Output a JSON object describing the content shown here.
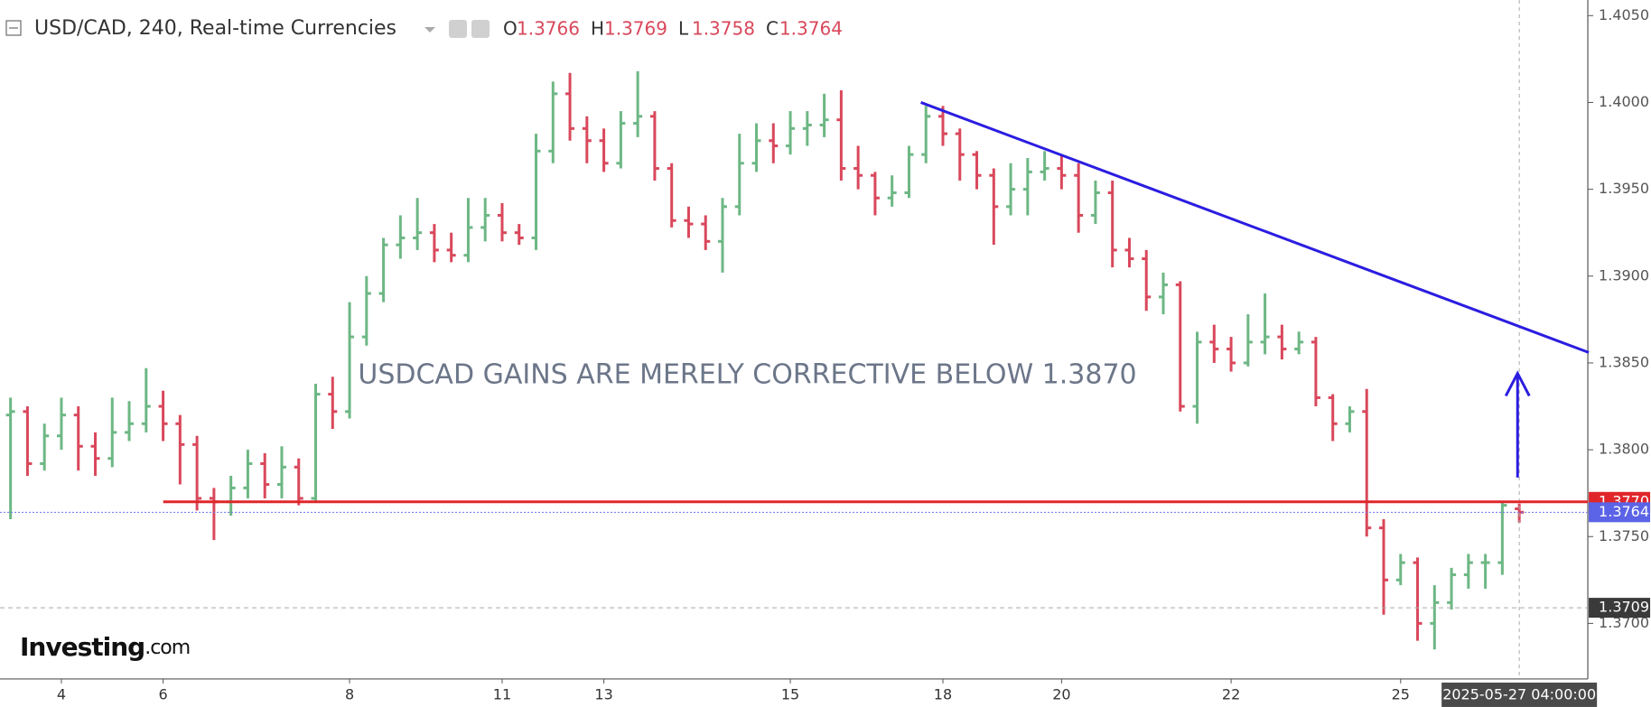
{
  "chart_data": {
    "type": "ohlc",
    "title": "USD/CAD, 240, Real-time Currencies",
    "ohlc_header": [
      {
        "label": "O",
        "value": 1.3766
      },
      {
        "label": "H",
        "value": 1.3769
      },
      {
        "label": "L",
        "value": 1.3758
      },
      {
        "label": "C",
        "value": 1.3764
      }
    ],
    "up_color": "#6db784",
    "down_color": "#d9485b",
    "categories": [
      null,
      null,
      null,
      "4",
      null,
      null,
      null,
      null,
      null,
      "6",
      null,
      null,
      null,
      null,
      null,
      null,
      null,
      null,
      null,
      null,
      "8",
      null,
      null,
      null,
      null,
      null,
      null,
      null,
      null,
      "11",
      null,
      null,
      null,
      null,
      null,
      "13",
      null,
      null,
      null,
      null,
      null,
      null,
      null,
      null,
      null,
      null,
      "15",
      null,
      null,
      null,
      null,
      null,
      null,
      null,
      null,
      "18",
      null,
      null,
      null,
      null,
      null,
      null,
      "20",
      null,
      null,
      null,
      null,
      null,
      null,
      null,
      null,
      null,
      "22",
      null,
      null,
      null,
      null,
      null,
      null,
      null,
      null,
      null,
      "25",
      null,
      null,
      null,
      null,
      null,
      null,
      "2025-05-27 04:00:00"
    ],
    "open": [
      1.382,
      1.3822,
      1.3792,
      1.3808,
      1.382,
      1.3802,
      1.3795,
      1.381,
      1.3815,
      1.3825,
      1.3815,
      1.3803,
      1.3772,
      1.377,
      1.3778,
      1.3792,
      1.378,
      1.379,
      1.3772,
      1.3832,
      1.3822,
      1.3865,
      1.389,
      1.3918,
      1.3922,
      1.3925,
      1.3915,
      1.3912,
      1.3928,
      1.3935,
      1.3925,
      1.3922,
      1.3972,
      1.4005,
      1.3985,
      1.3978,
      1.3965,
      1.3988,
      1.3992,
      1.3962,
      1.3932,
      1.393,
      1.392,
      1.394,
      1.3965,
      1.3978,
      1.3975,
      1.3985,
      1.3987,
      1.399,
      1.3962,
      1.3958,
      1.3945,
      1.3948,
      1.397,
      1.3992,
      1.3982,
      1.397,
      1.3958,
      1.394,
      1.395,
      1.396,
      1.3962,
      1.3958,
      1.3935,
      1.3948,
      1.3915,
      1.391,
      1.3888,
      1.3895,
      1.3825,
      1.3862,
      1.3858,
      1.385,
      1.3862,
      1.3865,
      1.3858,
      1.3862,
      1.383,
      1.3815,
      1.3822,
      1.3755,
      1.3725,
      1.3735,
      1.37,
      1.3712,
      1.3728,
      1.3735,
      1.3735,
      1.3766
    ],
    "high": [
      1.383,
      1.3825,
      1.3815,
      1.383,
      1.3825,
      1.381,
      1.383,
      1.3828,
      1.3847,
      1.3834,
      1.382,
      1.3808,
      1.3778,
      1.3785,
      1.38,
      1.3798,
      1.3802,
      1.3795,
      1.3838,
      1.3842,
      1.3885,
      1.39,
      1.3922,
      1.3935,
      1.3945,
      1.393,
      1.3925,
      1.3945,
      1.3945,
      1.3942,
      1.393,
      1.3982,
      1.4012,
      1.4017,
      1.3992,
      1.3985,
      1.3995,
      1.4018,
      1.3995,
      1.3965,
      1.394,
      1.3935,
      1.3945,
      1.3982,
      1.3988,
      1.3988,
      1.3995,
      1.3995,
      1.4005,
      1.4007,
      1.3975,
      1.396,
      1.3958,
      1.3975,
      1.3998,
      1.3998,
      1.3985,
      1.3972,
      1.3962,
      1.3965,
      1.3968,
      1.3972,
      1.397,
      1.3965,
      1.3955,
      1.3955,
      1.3922,
      1.3915,
      1.3902,
      1.3897,
      1.3868,
      1.3872,
      1.3865,
      1.3878,
      1.389,
      1.3872,
      1.3868,
      1.3865,
      1.3832,
      1.3825,
      1.3835,
      1.376,
      1.374,
      1.3738,
      1.3722,
      1.3732,
      1.374,
      1.374,
      1.377,
      1.3769
    ],
    "low": [
      1.376,
      1.3785,
      1.3788,
      1.38,
      1.3788,
      1.3785,
      1.379,
      1.3805,
      1.381,
      1.3805,
      1.378,
      1.3765,
      1.3748,
      1.3762,
      1.3772,
      1.3772,
      1.3772,
      1.3768,
      1.377,
      1.3812,
      1.3818,
      1.386,
      1.3885,
      1.391,
      1.3915,
      1.3908,
      1.3908,
      1.3908,
      1.392,
      1.392,
      1.3918,
      1.3915,
      1.3965,
      1.3978,
      1.3965,
      1.396,
      1.3962,
      1.398,
      1.3955,
      1.3928,
      1.3922,
      1.3915,
      1.3902,
      1.3935,
      1.396,
      1.3965,
      1.397,
      1.3975,
      1.398,
      1.3955,
      1.395,
      1.3935,
      1.394,
      1.3945,
      1.3965,
      1.3975,
      1.3955,
      1.395,
      1.3918,
      1.3935,
      1.3935,
      1.3955,
      1.395,
      1.3925,
      1.393,
      1.3905,
      1.3905,
      1.388,
      1.3878,
      1.3822,
      1.3815,
      1.385,
      1.3845,
      1.3848,
      1.3855,
      1.3852,
      1.3855,
      1.3825,
      1.3805,
      1.381,
      1.375,
      1.3705,
      1.3722,
      1.369,
      1.3685,
      1.3708,
      1.372,
      1.372,
      1.3728,
      1.3758
    ],
    "close": [
      1.3822,
      1.3792,
      1.3808,
      1.382,
      1.3802,
      1.3795,
      1.381,
      1.3815,
      1.3825,
      1.3815,
      1.3803,
      1.3772,
      1.377,
      1.3778,
      1.3792,
      1.378,
      1.379,
      1.3772,
      1.3832,
      1.3822,
      1.3865,
      1.389,
      1.3918,
      1.3922,
      1.3925,
      1.3915,
      1.3912,
      1.3928,
      1.3935,
      1.3925,
      1.3922,
      1.3972,
      1.4005,
      1.3985,
      1.3978,
      1.3965,
      1.3988,
      1.3992,
      1.3962,
      1.3932,
      1.393,
      1.392,
      1.394,
      1.3965,
      1.3978,
      1.3975,
      1.3985,
      1.3987,
      1.399,
      1.3962,
      1.3958,
      1.3945,
      1.3948,
      1.397,
      1.3992,
      1.3982,
      1.397,
      1.3958,
      1.394,
      1.395,
      1.396,
      1.3962,
      1.3958,
      1.3935,
      1.3948,
      1.3915,
      1.391,
      1.3888,
      1.3895,
      1.3825,
      1.3862,
      1.3858,
      1.385,
      1.3862,
      1.3865,
      1.3858,
      1.3862,
      1.383,
      1.3815,
      1.3822,
      1.3755,
      1.3725,
      1.3735,
      1.37,
      1.3712,
      1.3728,
      1.3735,
      1.3735,
      1.3768,
      1.3764
    ],
    "ylim": [
      1.3668,
      1.4059
    ],
    "yticks": [
      {
        "value": 1.405,
        "label": "1.4050"
      },
      {
        "value": 1.4,
        "label": "1.4000"
      },
      {
        "value": 1.395,
        "label": "1.3950"
      },
      {
        "value": 1.39,
        "label": "1.3900"
      },
      {
        "value": 1.385,
        "label": "1.3850"
      },
      {
        "value": 1.38,
        "label": "1.3800"
      },
      {
        "value": 1.375,
        "label": "1.3750"
      },
      {
        "value": 1.37,
        "label": "1.3700"
      }
    ],
    "levels": [
      {
        "value": 1.377,
        "label": "1.3770",
        "color": "#e0262b",
        "style": "solid"
      },
      {
        "value": 1.3764,
        "label": "1.3764",
        "color": "#5b63e6",
        "style": "dotted"
      },
      {
        "value": 1.3709,
        "label": "1.3709",
        "color": "#3a3a3a",
        "style": "dashed"
      }
    ],
    "trendline": {
      "color": "#2b1de0",
      "points": [
        [
          53.7,
          1.4
        ],
        [
          93.1,
          1.3856
        ]
      ]
    },
    "arrow": {
      "color": "#2b1de0",
      "x": 88.9,
      "from": 1.3784,
      "to": 1.3844
    },
    "annotation": "USDCAD GAINS ARE MERELY CORRECTIVE BELOW 1.3870",
    "logo": {
      "brand": "Investing",
      "suffix": ".com"
    }
  }
}
